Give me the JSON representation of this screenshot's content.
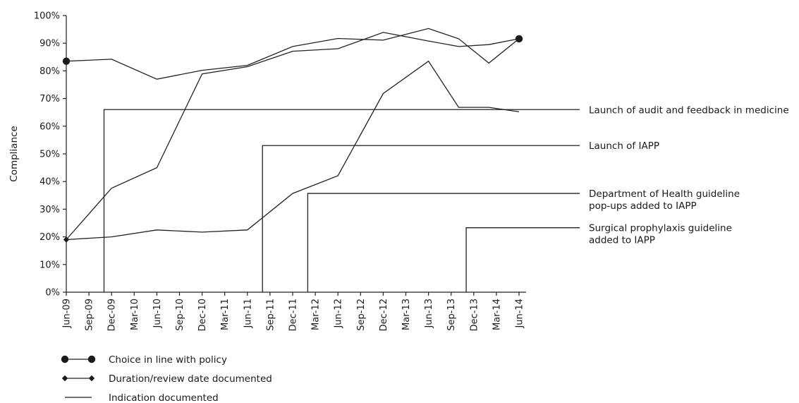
{
  "chart_data": {
    "type": "line",
    "ylabel": "Compliance",
    "xlabel": "",
    "ylim": [
      0,
      100
    ],
    "y_ticks": [
      0,
      10,
      20,
      30,
      40,
      50,
      60,
      70,
      80,
      90,
      100
    ],
    "y_tick_labels": [
      "0%",
      "10%",
      "20%",
      "30%",
      "40%",
      "50%",
      "60%",
      "70%",
      "80%",
      "90%",
      "100%"
    ],
    "x_ticks": [
      "Jun-09",
      "Sep-09",
      "Dec-09",
      "Mar-10",
      "Jun-10",
      "Sep-10",
      "Dec-10",
      "Mar-11",
      "Jun-11",
      "Sep-11",
      "Dec-11",
      "Mar-12",
      "Jun-12",
      "Sep-12",
      "Dec-12",
      "Mar-13",
      "Jun-13",
      "Sep-13",
      "Dec-13",
      "Mar-14",
      "Jun-14"
    ],
    "grid": false,
    "legend_position": "bottom-left",
    "series": [
      {
        "name": "Choice in line with policy",
        "marker": "circle",
        "points": [
          {
            "x": "Jun-09",
            "y": 83.5
          },
          {
            "x": "Dec-09",
            "y": 84.2
          },
          {
            "x": "Jun-10",
            "y": 77.0
          },
          {
            "x": "Dec-10",
            "y": 80.2
          },
          {
            "x": "Jun-11",
            "y": 82.0
          },
          {
            "x": "Dec-11",
            "y": 88.8
          },
          {
            "x": "Jun-12",
            "y": 91.7
          },
          {
            "x": "Dec-12",
            "y": 91.1
          },
          {
            "x": "Jun-13",
            "y": 95.3
          },
          {
            "x": "Oct-13",
            "y": 91.6
          },
          {
            "x": "Feb-14",
            "y": 82.8
          },
          {
            "x": "Jun-14",
            "y": 91.6
          }
        ]
      },
      {
        "name": "Duration/review date documented",
        "marker": "diamond",
        "points": [
          {
            "x": "Jun-09",
            "y": 19.0
          },
          {
            "x": "Dec-09",
            "y": 37.6
          },
          {
            "x": "Jun-10",
            "y": 45.0
          },
          {
            "x": "Dec-10",
            "y": 78.9
          },
          {
            "x": "Jun-11",
            "y": 81.5
          },
          {
            "x": "Dec-11",
            "y": 87.1
          },
          {
            "x": "Jun-12",
            "y": 88.0
          },
          {
            "x": "Dec-12",
            "y": 93.9
          },
          {
            "x": "Jun-13",
            "y": 90.8
          },
          {
            "x": "Oct-13",
            "y": 88.8
          },
          {
            "x": "Feb-14",
            "y": 89.5
          },
          {
            "x": "Jun-14",
            "y": 91.6
          }
        ]
      },
      {
        "name": "Indication documented",
        "marker": "none",
        "points": [
          {
            "x": "Jun-09",
            "y": 19.0
          },
          {
            "x": "Dec-09",
            "y": 20.0
          },
          {
            "x": "Jun-10",
            "y": 22.5
          },
          {
            "x": "Dec-10",
            "y": 21.7
          },
          {
            "x": "Jun-11",
            "y": 22.5
          },
          {
            "x": "Dec-11",
            "y": 35.7
          },
          {
            "x": "Jun-12",
            "y": 42.1
          },
          {
            "x": "Dec-12",
            "y": 71.8
          },
          {
            "x": "Jun-13",
            "y": 83.5
          },
          {
            "x": "Oct-13",
            "y": 66.8
          },
          {
            "x": "Feb-14",
            "y": 66.8
          },
          {
            "x": "Jun-14",
            "y": 65.2
          }
        ]
      }
    ],
    "annotations": [
      {
        "label_lines": [
          "Launch of audit and feedback in medicine"
        ],
        "x": "Nov-09",
        "y": 66
      },
      {
        "label_lines": [
          "Launch of IAPP"
        ],
        "x": "Aug-11",
        "y": 53
      },
      {
        "label_lines": [
          "Department of Health guideline",
          "pop-ups added to IAPP"
        ],
        "x": "Feb-12",
        "y": 35.7
      },
      {
        "label_lines": [
          "Surgical prophylaxis guideline",
          "added to IAPP"
        ],
        "x": "Nov-13",
        "y": 23.3
      }
    ]
  }
}
